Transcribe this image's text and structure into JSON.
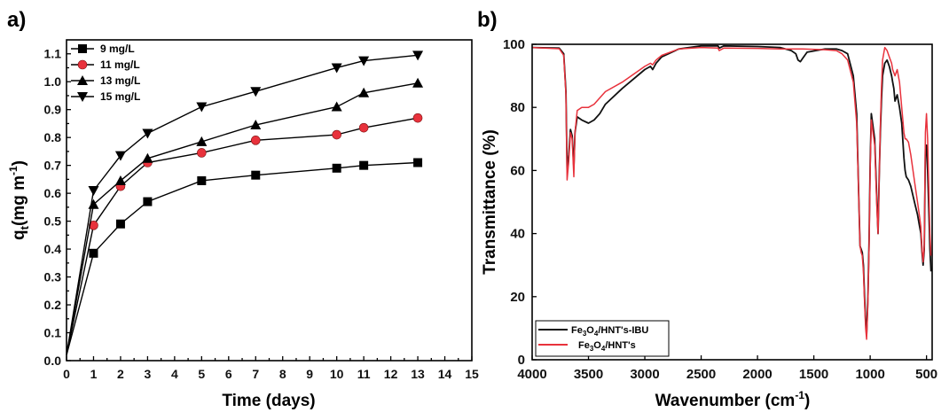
{
  "chart_data": [
    {
      "panel_label": "a)",
      "type": "line",
      "xlabel": "Time (days)",
      "ylabel_main": "q",
      "ylabel_sub": "t",
      "ylabel_rest": "(mg m",
      "ylabel_sup": "-1",
      "ylabel_end": ")",
      "xlim": [
        0,
        15
      ],
      "ylim": [
        0.0,
        1.15
      ],
      "xticks": [
        "0",
        "1",
        "2",
        "3",
        "4",
        "5",
        "6",
        "7",
        "8",
        "9",
        "10",
        "11",
        "12",
        "13",
        "14",
        "15"
      ],
      "yticks": [
        "0.0",
        "0.1",
        "0.2",
        "0.3",
        "0.4",
        "0.5",
        "0.6",
        "0.7",
        "0.8",
        "0.9",
        "1.0",
        "1.1"
      ],
      "legend_position": "top-left",
      "x": [
        0,
        1,
        2,
        3,
        5,
        7,
        10,
        11,
        13
      ],
      "series": [
        {
          "name": "9 mg/L",
          "marker": "square",
          "color": "#000000",
          "values": [
            0.02,
            0.385,
            0.49,
            0.57,
            0.645,
            0.665,
            0.69,
            0.7,
            0.71
          ]
        },
        {
          "name": "11 mg/L",
          "marker": "circle",
          "color": "#e8323c",
          "line_color": "#000000",
          "values": [
            0.02,
            0.485,
            0.625,
            0.71,
            0.745,
            0.79,
            0.81,
            0.835,
            0.87
          ]
        },
        {
          "name": "13 mg/L",
          "marker": "triangle-up",
          "color": "#000000",
          "values": [
            0.02,
            0.56,
            0.645,
            0.725,
            0.785,
            0.845,
            0.91,
            0.96,
            0.995
          ]
        },
        {
          "name": "15 mg/L",
          "marker": "triangle-down",
          "color": "#000000",
          "values": [
            0.02,
            0.61,
            0.735,
            0.815,
            0.91,
            0.965,
            1.05,
            1.075,
            1.095
          ]
        }
      ]
    },
    {
      "panel_label": "b)",
      "type": "line",
      "xlabel_main": "Wavenumber (cm",
      "xlabel_sup": "-1",
      "xlabel_end": ")",
      "ylabel": "Transmittance (%)",
      "xlim": [
        4000,
        450
      ],
      "x_reversed": true,
      "ylim": [
        0,
        100
      ],
      "xticks": [
        "4000",
        "3500",
        "3000",
        "2500",
        "2000",
        "1500",
        "1000",
        "500"
      ],
      "xtick_values": [
        4000,
        3500,
        3000,
        2500,
        2000,
        1500,
        1000,
        500
      ],
      "yticks": [
        "0",
        "20",
        "40",
        "60",
        "80",
        "100"
      ],
      "ytick_values": [
        0,
        20,
        40,
        60,
        80,
        100
      ],
      "legend_position": "bottom-left",
      "series": [
        {
          "name_parts": [
            "Fe",
            "3",
            "O",
            "4",
            "/HNT's-IBU"
          ],
          "color": "#111111",
          "x": [
            4000,
            3760,
            3720,
            3700,
            3690,
            3675,
            3660,
            3645,
            3630,
            3620,
            3600,
            3560,
            3500,
            3450,
            3400,
            3350,
            3200,
            3000,
            2950,
            2930,
            2900,
            2850,
            2700,
            2500,
            2350,
            2340,
            2300,
            2000,
            1800,
            1700,
            1660,
            1640,
            1620,
            1600,
            1560,
            1400,
            1300,
            1250,
            1200,
            1150,
            1120,
            1100,
            1090,
            1080,
            1070,
            1060,
            1050,
            1040,
            1032,
            1020,
            1010,
            1000,
            990,
            960,
            940,
            930,
            920,
            910,
            900,
            890,
            870,
            850,
            830,
            810,
            800,
            790,
            780,
            760,
            740,
            720,
            700,
            690,
            680,
            660,
            640,
            620,
            600,
            580,
            560,
            550,
            540,
            530,
            520,
            510,
            500,
            490,
            480,
            470,
            460
          ],
          "y": [
            99,
            98.8,
            97,
            85,
            60,
            65,
            73,
            71,
            61,
            72,
            77,
            76,
            75,
            76,
            78,
            81,
            86,
            92,
            93,
            92,
            94,
            96,
            98.5,
            99.5,
            99.5,
            98.8,
            99.5,
            99.3,
            99,
            98,
            97,
            95,
            94.5,
            95.5,
            97.5,
            98.5,
            98.5,
            98,
            97,
            90,
            78,
            50,
            36,
            35,
            34,
            30,
            20,
            12,
            8,
            20,
            38,
            62,
            78,
            70,
            50,
            40,
            58,
            72,
            82,
            90,
            94,
            95,
            93,
            90,
            88,
            86,
            82,
            84,
            80,
            75,
            64,
            60,
            58,
            57,
            55,
            52,
            49,
            46,
            42,
            40,
            34,
            30,
            35,
            67,
            68,
            60,
            48,
            35,
            28
          ]
        },
        {
          "name_parts": [
            "Fe",
            "3",
            "O",
            "4",
            "/HNT's"
          ],
          "color": "#e8323c",
          "x": [
            4000,
            3760,
            3720,
            3700,
            3690,
            3675,
            3660,
            3645,
            3630,
            3620,
            3600,
            3560,
            3500,
            3450,
            3400,
            3350,
            3200,
            3000,
            2950,
            2930,
            2900,
            2850,
            2700,
            2500,
            2350,
            2340,
            2300,
            2000,
            1800,
            1700,
            1600,
            1400,
            1300,
            1250,
            1200,
            1150,
            1120,
            1100,
            1090,
            1080,
            1070,
            1060,
            1050,
            1040,
            1032,
            1020,
            1010,
            1000,
            990,
            960,
            940,
            930,
            920,
            910,
            900,
            890,
            870,
            850,
            830,
            810,
            800,
            790,
            780,
            760,
            740,
            720,
            700,
            690,
            680,
            660,
            640,
            620,
            600,
            580,
            560,
            550,
            540,
            530,
            520,
            510,
            500,
            490,
            480,
            470,
            460
          ],
          "y": [
            99,
            98.6,
            96.5,
            84,
            57,
            63,
            72,
            70,
            58,
            72,
            79,
            80,
            80,
            81,
            83,
            85,
            88,
            93,
            94,
            93.5,
            95,
            96.5,
            98.5,
            99,
            98.8,
            98,
            98.8,
            98.7,
            98.5,
            98.5,
            98.5,
            98.3,
            98,
            97,
            95,
            88,
            75,
            50,
            36,
            34,
            33,
            28,
            18,
            10,
            6.5,
            18,
            36,
            60,
            76,
            68,
            48,
            40,
            57,
            74,
            86,
            95,
            99,
            98,
            96,
            94,
            92,
            91,
            90,
            92,
            88,
            80,
            72,
            70,
            70,
            69,
            65,
            60,
            55,
            50,
            45,
            42,
            35,
            31,
            36,
            72,
            78,
            70,
            55,
            40,
            33
          ]
        }
      ]
    }
  ]
}
